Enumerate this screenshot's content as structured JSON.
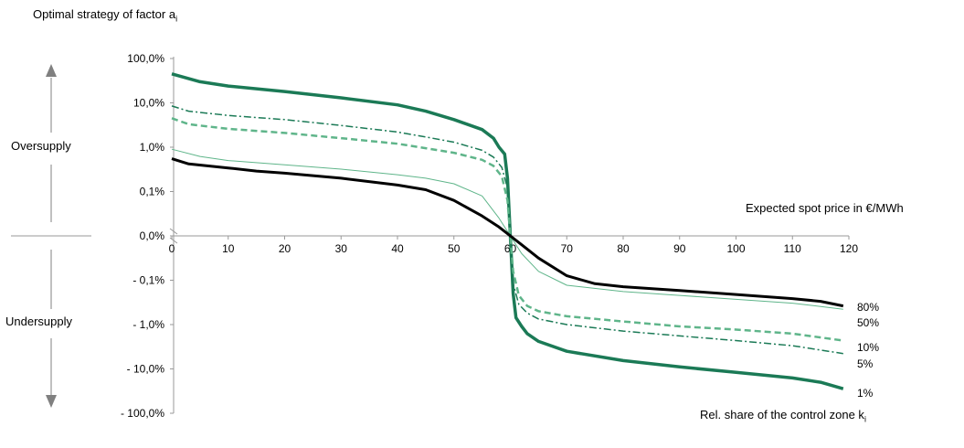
{
  "title": "Optimal strategy of factor a",
  "title_sub": "i",
  "x_axis_title": "Expected spot price in €/MWh",
  "zone_label": "Rel. share of the control zone k",
  "zone_label_sub": "i",
  "side_labels": {
    "top": "Oversupply",
    "bottom": "Undersupply"
  },
  "colors": {
    "dark_green": "#1b7a56",
    "light_green": "#5fb58a",
    "black": "#000000",
    "axis": "#999999",
    "arrow": "#808080"
  },
  "chart_data": {
    "type": "line",
    "y_scale": "symmetric-log",
    "x_ticks": [
      0,
      10,
      20,
      30,
      40,
      50,
      60,
      70,
      80,
      90,
      100,
      110,
      120
    ],
    "xlim": [
      0,
      120
    ],
    "y_ticks": [
      {
        "value": 100,
        "label": "100,0%"
      },
      {
        "value": 10,
        "label": "10,0%"
      },
      {
        "value": 1,
        "label": "1,0%"
      },
      {
        "value": 0.1,
        "label": "0,1%"
      },
      {
        "value": 0,
        "label": "0,0%"
      },
      {
        "value": -0.1,
        "label": "- 0,1%"
      },
      {
        "value": -1,
        "label": "- 1,0%"
      },
      {
        "value": -10,
        "label": "- 10,0%"
      },
      {
        "value": -100,
        "label": "- 100,0%"
      }
    ],
    "series": [
      {
        "name": "1%",
        "color": "#1b7a56",
        "width": 3.5,
        "dash": "",
        "points": [
          [
            0,
            45
          ],
          [
            5,
            30
          ],
          [
            10,
            24
          ],
          [
            20,
            18
          ],
          [
            30,
            13
          ],
          [
            40,
            9
          ],
          [
            45,
            6.5
          ],
          [
            50,
            4.2
          ],
          [
            55,
            2.5
          ],
          [
            57,
            1.6
          ],
          [
            58,
            1.0
          ],
          [
            59,
            0.7
          ],
          [
            59.5,
            0.2
          ],
          [
            60,
            0
          ],
          [
            60.5,
            -0.2
          ],
          [
            61,
            -0.7
          ],
          [
            62,
            -1.1
          ],
          [
            63,
            -1.6
          ],
          [
            65,
            -2.4
          ],
          [
            70,
            -4.0
          ],
          [
            80,
            -6.5
          ],
          [
            90,
            -9
          ],
          [
            100,
            -12
          ],
          [
            110,
            -16
          ],
          [
            115,
            -20
          ],
          [
            119,
            -28
          ]
        ]
      },
      {
        "name": "5%",
        "color": "#1b7a56",
        "width": 1.5,
        "dash": "8,3,2,3",
        "points": [
          [
            0,
            8.5
          ],
          [
            3,
            6.5
          ],
          [
            10,
            5.2
          ],
          [
            20,
            4.2
          ],
          [
            30,
            3.1
          ],
          [
            40,
            2.2
          ],
          [
            45,
            1.7
          ],
          [
            50,
            1.3
          ],
          [
            55,
            0.85
          ],
          [
            57,
            0.6
          ],
          [
            58.5,
            0.35
          ],
          [
            59.5,
            0.12
          ],
          [
            60,
            0
          ],
          [
            60.5,
            -0.12
          ],
          [
            61.5,
            -0.35
          ],
          [
            63,
            -0.55
          ],
          [
            65,
            -0.75
          ],
          [
            70,
            -1.0
          ],
          [
            80,
            -1.4
          ],
          [
            90,
            -1.8
          ],
          [
            100,
            -2.3
          ],
          [
            110,
            -3.0
          ],
          [
            119,
            -4.5
          ]
        ]
      },
      {
        "name": "10%",
        "color": "#5fb58a",
        "width": 2.5,
        "dash": "7,4",
        "points": [
          [
            0,
            4.5
          ],
          [
            3,
            3.3
          ],
          [
            10,
            2.6
          ],
          [
            20,
            2.1
          ],
          [
            30,
            1.6
          ],
          [
            40,
            1.2
          ],
          [
            45,
            0.95
          ],
          [
            50,
            0.75
          ],
          [
            55,
            0.52
          ],
          [
            57,
            0.38
          ],
          [
            58.5,
            0.22
          ],
          [
            59.5,
            0.08
          ],
          [
            60,
            0
          ],
          [
            60.5,
            -0.08
          ],
          [
            61.5,
            -0.22
          ],
          [
            63,
            -0.38
          ],
          [
            65,
            -0.5
          ],
          [
            70,
            -0.65
          ],
          [
            80,
            -0.85
          ],
          [
            90,
            -1.1
          ],
          [
            100,
            -1.3
          ],
          [
            110,
            -1.6
          ],
          [
            119,
            -2.3
          ]
        ]
      },
      {
        "name": "50%",
        "color": "#5fb58a",
        "width": 1,
        "dash": "",
        "points": [
          [
            0,
            0.9
          ],
          [
            5,
            0.62
          ],
          [
            10,
            0.5
          ],
          [
            20,
            0.4
          ],
          [
            30,
            0.32
          ],
          [
            40,
            0.24
          ],
          [
            45,
            0.2
          ],
          [
            50,
            0.15
          ],
          [
            55,
            0.09
          ],
          [
            58,
            0.04
          ],
          [
            60,
            0
          ],
          [
            62,
            -0.04
          ],
          [
            65,
            -0.08
          ],
          [
            70,
            -0.13
          ],
          [
            80,
            -0.18
          ],
          [
            90,
            -0.22
          ],
          [
            100,
            -0.27
          ],
          [
            110,
            -0.33
          ],
          [
            119,
            -0.45
          ]
        ]
      },
      {
        "name": "80%",
        "color": "#000000",
        "width": 3,
        "dash": "",
        "points": [
          [
            0,
            0.55
          ],
          [
            3,
            0.42
          ],
          [
            10,
            0.34
          ],
          [
            15,
            0.29
          ],
          [
            20,
            0.26
          ],
          [
            30,
            0.2
          ],
          [
            40,
            0.14
          ],
          [
            45,
            0.11
          ],
          [
            50,
            0.08
          ],
          [
            55,
            0.045
          ],
          [
            58,
            0.02
          ],
          [
            60,
            0
          ],
          [
            62,
            -0.02
          ],
          [
            65,
            -0.05
          ],
          [
            70,
            -0.09
          ],
          [
            75,
            -0.12
          ],
          [
            80,
            -0.14
          ],
          [
            90,
            -0.17
          ],
          [
            100,
            -0.21
          ],
          [
            110,
            -0.26
          ],
          [
            115,
            -0.3
          ],
          [
            119,
            -0.38
          ]
        ]
      }
    ]
  }
}
